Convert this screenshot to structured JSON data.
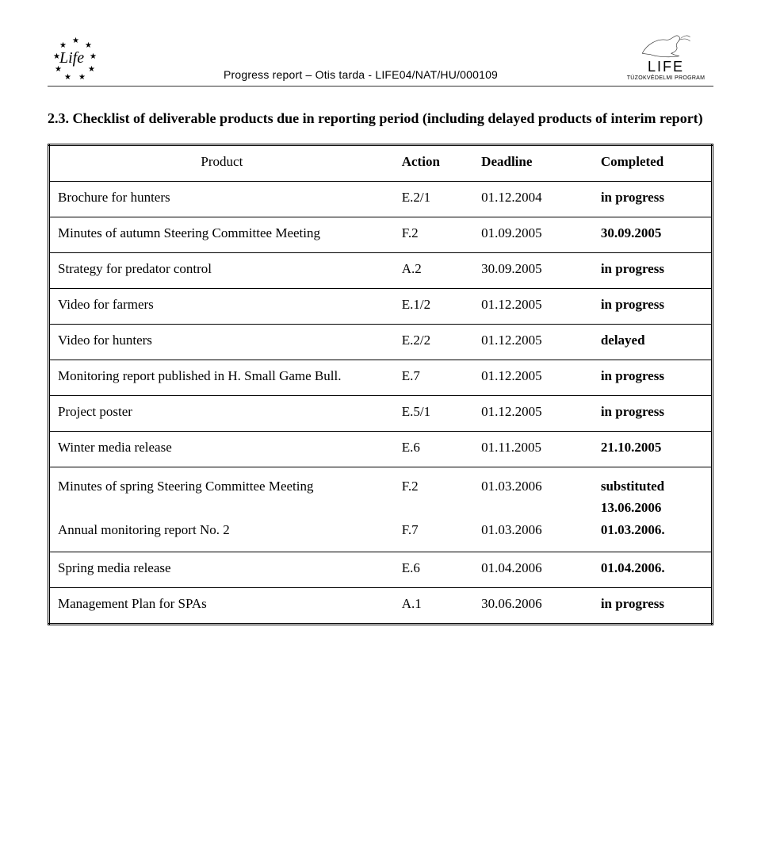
{
  "header": {
    "title": "Progress report – Otis tarda - LIFE04/NAT/HU/000109",
    "life_word": "Life",
    "right_title": "LIFE",
    "right_sub": "TÚZOKVÉDELMI PROGRAM"
  },
  "section_title": "2.3. Checklist of deliverable products due in reporting period (including delayed products of interim report)",
  "table": {
    "headers": {
      "product": "Product",
      "action": "Action",
      "deadline": "Deadline",
      "completed": "Completed"
    },
    "rows": [
      {
        "product": "Brochure for hunters",
        "action": "E.2/1",
        "deadline": "01.12.2004",
        "completed": "in progress",
        "bold": true
      },
      {
        "product": "Minutes of autumn Steering Committee Meeting",
        "action": "F.2",
        "deadline": "01.09.2005",
        "completed": "30.09.2005",
        "bold": true
      },
      {
        "product": "Strategy for predator control",
        "action": "A.2",
        "deadline": "30.09.2005",
        "completed": "in progress",
        "bold": true
      },
      {
        "product": "Video for farmers",
        "action": "E.1/2",
        "deadline": "01.12.2005",
        "completed": "in progress",
        "bold": true
      },
      {
        "product": "Video for hunters",
        "action": "E.2/2",
        "deadline": "01.12.2005",
        "completed": "delayed",
        "bold": true
      },
      {
        "product": "Monitoring report published in H. Small Game Bull.",
        "action": "E.7",
        "deadline": "01.12.2005",
        "completed": "in progress",
        "bold": true,
        "tall": true
      },
      {
        "product": "Project poster",
        "action": "E.5/1",
        "deadline": "01.12.2005",
        "completed": "in progress",
        "bold": true
      },
      {
        "product": "Winter media release",
        "action": "E.6",
        "deadline": "01.11.2005",
        "completed": "21.10.2005",
        "bold": true
      },
      {
        "product": "Minutes of spring Steering Committee Meeting",
        "action": "F.2",
        "deadline": "01.03.2006",
        "completed": "substituted 13.06.2006",
        "bold": true,
        "merge_down_visual": true
      },
      {
        "product": "Annual monitoring report No. 2",
        "action": "F.7",
        "deadline": "01.03.2006",
        "completed": "01.03.2006.",
        "bold": true
      },
      {
        "product": "Spring media release",
        "action": "E.6",
        "deadline": "01.04.2006",
        "completed": "01.04.2006.",
        "bold": true
      },
      {
        "product": "Management Plan for SPAs",
        "action": "A.1",
        "deadline": "30.06.2006",
        "completed": "in progress",
        "bold": true
      }
    ]
  },
  "colors": {
    "text": "#000000",
    "border": "#000000",
    "header_rule": "#333333",
    "background": "#ffffff"
  },
  "fonts": {
    "body_family": "Times New Roman",
    "header_family": "Arial",
    "body_size_pt": 13,
    "section_title_size_pt": 14
  }
}
